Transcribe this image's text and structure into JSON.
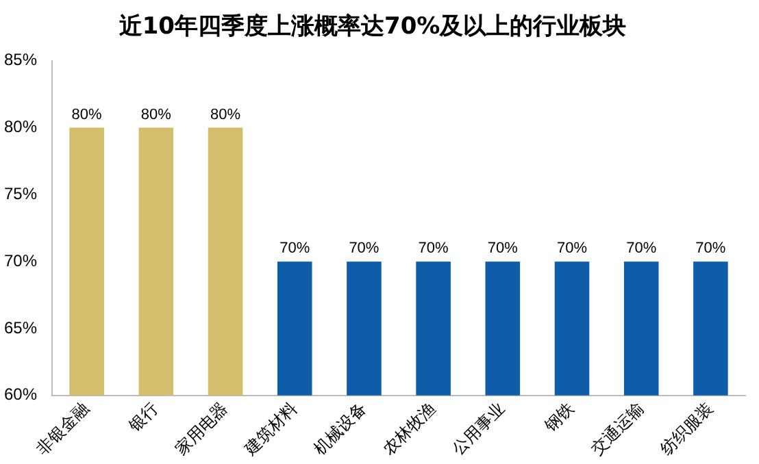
{
  "chart_data": {
    "type": "bar",
    "title": "近10年四季度上涨概率达70%及以上的行业板块",
    "categories": [
      "非银金融",
      "银行",
      "家用电器",
      "建筑材料",
      "机械设备",
      "农林牧渔",
      "公用事业",
      "钢铁",
      "交通运输",
      "纺织服装"
    ],
    "values": [
      80,
      80,
      80,
      70,
      70,
      70,
      70,
      70,
      70,
      70
    ],
    "colors": [
      "#d4bd6c",
      "#d4bd6c",
      "#d4bd6c",
      "#0f5ca8",
      "#0f5ca8",
      "#0f5ca8",
      "#0f5ca8",
      "#0f5ca8",
      "#0f5ca8",
      "#0f5ca8"
    ],
    "value_labels": [
      "80%",
      "80%",
      "80%",
      "70%",
      "70%",
      "70%",
      "70%",
      "70%",
      "70%",
      "70%"
    ],
    "ylim": [
      60,
      85
    ],
    "yticks": [
      {
        "value": 60,
        "label": "60%"
      },
      {
        "value": 65,
        "label": "65%"
      },
      {
        "value": 70,
        "label": "70%"
      },
      {
        "value": 75,
        "label": "75%"
      },
      {
        "value": 80,
        "label": "80%"
      },
      {
        "value": 85,
        "label": "85%"
      }
    ],
    "grid": false,
    "legend": false
  }
}
